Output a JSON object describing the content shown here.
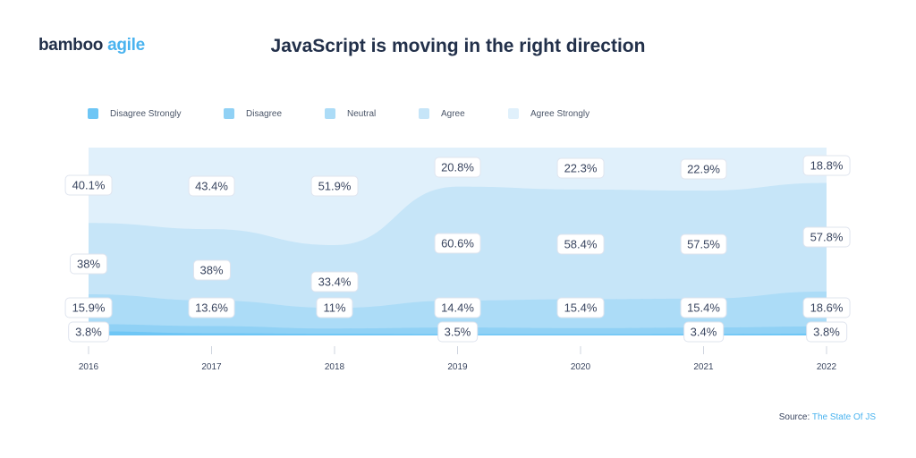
{
  "brand": {
    "part1": "bamboo",
    "part2": "agile"
  },
  "source": {
    "prefix": "Source:",
    "link_text": "The State Of JS"
  },
  "chart_data": {
    "type": "area",
    "stacked": true,
    "normalized": true,
    "title": "JavaScript is moving in the right direction",
    "x": [
      "2016",
      "2017",
      "2018",
      "2019",
      "2020",
      "2021",
      "2022"
    ],
    "ylim": [
      0,
      100
    ],
    "grid": false,
    "legend_position": "top",
    "series": [
      {
        "name": "Disagree Strongly",
        "color": "#6ec6f5",
        "values": [
          2.2,
          1.2,
          0.9,
          0.7,
          0.7,
          0.8,
          1.0
        ]
      },
      {
        "name": "Disagree",
        "color": "#90d1f5",
        "values": [
          3.8,
          3.8,
          2.8,
          3.5,
          3.2,
          3.4,
          3.8
        ]
      },
      {
        "name": "Neutral",
        "color": "#acdcf7",
        "values": [
          15.9,
          13.6,
          11,
          14.4,
          15.4,
          15.4,
          18.6
        ]
      },
      {
        "name": "Agree",
        "color": "#c6e5f8",
        "values": [
          38,
          38,
          33.4,
          60.6,
          58.4,
          57.5,
          57.8
        ]
      },
      {
        "name": "Agree Strongly",
        "color": "#e0f0fb",
        "values": [
          40.1,
          43.4,
          51.9,
          20.8,
          22.3,
          22.9,
          18.8
        ]
      }
    ],
    "data_labels": {
      "Disagree": [
        "3.8%",
        null,
        null,
        "3.5%",
        null,
        "3.4%",
        "3.8%"
      ],
      "Neutral": [
        "15.9%",
        "13.6%",
        "11%",
        "14.4%",
        "15.4%",
        "15.4%",
        "18.6%"
      ],
      "Agree": [
        "38%",
        "38%",
        "33.4%",
        "60.6%",
        "58.4%",
        "57.5%",
        "57.8%"
      ],
      "Agree Strongly": [
        "40.1%",
        "43.4%",
        "51.9%",
        "20.8%",
        "22.3%",
        "22.9%",
        "18.8%"
      ]
    }
  }
}
